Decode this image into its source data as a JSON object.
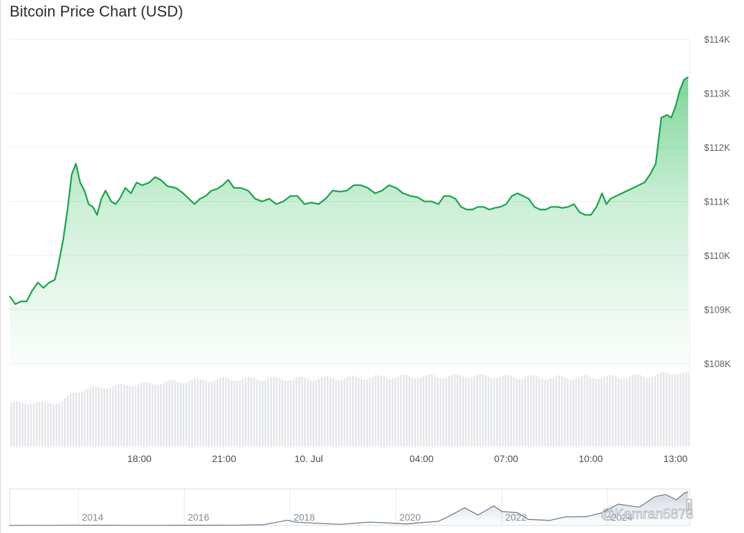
{
  "page": {
    "title": "Bitcoin Price Chart (USD)",
    "watermark": "@Kamran5873",
    "colors": {
      "line": "#1aa64b",
      "fill": "#2ebd5a",
      "volume": "#e4e6ea",
      "navigator_line": "#6c7f91",
      "grid": "#eceef1"
    }
  },
  "chart_data": [
    {
      "type": "area",
      "title": "Bitcoin Price Chart (USD)",
      "xlabel": "",
      "ylabel": "",
      "ylim": [
        108000,
        114000
      ],
      "y_ticks": [
        114000,
        113000,
        112000,
        111000,
        110000,
        109000,
        108000
      ],
      "y_tick_labels": [
        "$114K",
        "$113K",
        "$112K",
        "$111K",
        "$110K",
        "$109K",
        "$108K"
      ],
      "x_tick_labels": [
        "18:00",
        "21:00",
        "10. Jul",
        "04:00",
        "07:00",
        "10:00",
        "13:00"
      ],
      "x_tick_hours": [
        18,
        21,
        24,
        28,
        31,
        34,
        37
      ],
      "x_range_hours": [
        13.4,
        37.5
      ],
      "grid": true,
      "series": [
        {
          "points": [
            [
              13.4,
              109250
            ],
            [
              13.6,
              109100
            ],
            [
              13.8,
              109150
            ],
            [
              14.0,
              109150
            ],
            [
              14.2,
              109350
            ],
            [
              14.4,
              109500
            ],
            [
              14.6,
              109400
            ],
            [
              14.8,
              109500
            ],
            [
              15.0,
              109550
            ],
            [
              15.1,
              109750
            ],
            [
              15.3,
              110300
            ],
            [
              15.45,
              110850
            ],
            [
              15.6,
              111500
            ],
            [
              15.75,
              111700
            ],
            [
              15.9,
              111350
            ],
            [
              16.05,
              111200
            ],
            [
              16.2,
              110950
            ],
            [
              16.35,
              110900
            ],
            [
              16.5,
              110750
            ],
            [
              16.65,
              111050
            ],
            [
              16.8,
              111200
            ],
            [
              17.0,
              111000
            ],
            [
              17.15,
              110950
            ],
            [
              17.3,
              111050
            ],
            [
              17.5,
              111250
            ],
            [
              17.7,
              111150
            ],
            [
              17.9,
              111350
            ],
            [
              18.1,
              111300
            ],
            [
              18.35,
              111350
            ],
            [
              18.55,
              111450
            ],
            [
              18.75,
              111400
            ],
            [
              19.0,
              111280
            ],
            [
              19.3,
              111250
            ],
            [
              19.55,
              111150
            ],
            [
              19.75,
              111050
            ],
            [
              19.95,
              110950
            ],
            [
              20.15,
              111050
            ],
            [
              20.35,
              111100
            ],
            [
              20.55,
              111200
            ],
            [
              20.75,
              111230
            ],
            [
              20.95,
              111300
            ],
            [
              21.15,
              111400
            ],
            [
              21.35,
              111250
            ],
            [
              21.6,
              111250
            ],
            [
              21.85,
              111200
            ],
            [
              22.1,
              111050
            ],
            [
              22.35,
              111000
            ],
            [
              22.6,
              111050
            ],
            [
              22.85,
              110950
            ],
            [
              23.1,
              111000
            ],
            [
              23.35,
              111100
            ],
            [
              23.6,
              111100
            ],
            [
              23.85,
              110950
            ],
            [
              24.1,
              110980
            ],
            [
              24.35,
              110950
            ],
            [
              24.6,
              111050
            ],
            [
              24.85,
              111200
            ],
            [
              25.1,
              111180
            ],
            [
              25.35,
              111200
            ],
            [
              25.6,
              111300
            ],
            [
              25.85,
              111300
            ],
            [
              26.1,
              111250
            ],
            [
              26.35,
              111150
            ],
            [
              26.6,
              111200
            ],
            [
              26.85,
              111300
            ],
            [
              27.1,
              111250
            ],
            [
              27.35,
              111150
            ],
            [
              27.6,
              111100
            ],
            [
              27.85,
              111080
            ],
            [
              28.1,
              111000
            ],
            [
              28.35,
              111000
            ],
            [
              28.6,
              110950
            ],
            [
              28.8,
              111100
            ],
            [
              29.0,
              111100
            ],
            [
              29.2,
              111050
            ],
            [
              29.4,
              110900
            ],
            [
              29.6,
              110850
            ],
            [
              29.8,
              110850
            ],
            [
              30.0,
              110900
            ],
            [
              30.2,
              110900
            ],
            [
              30.4,
              110850
            ],
            [
              30.6,
              110880
            ],
            [
              30.8,
              110900
            ],
            [
              31.0,
              110950
            ],
            [
              31.2,
              111100
            ],
            [
              31.4,
              111150
            ],
            [
              31.6,
              111100
            ],
            [
              31.8,
              111050
            ],
            [
              32.0,
              110900
            ],
            [
              32.2,
              110850
            ],
            [
              32.4,
              110850
            ],
            [
              32.6,
              110900
            ],
            [
              32.8,
              110900
            ],
            [
              33.0,
              110880
            ],
            [
              33.2,
              110900
            ],
            [
              33.4,
              110950
            ],
            [
              33.6,
              110800
            ],
            [
              33.8,
              110750
            ],
            [
              34.0,
              110750
            ],
            [
              34.2,
              110900
            ],
            [
              34.4,
              111150
            ],
            [
              34.55,
              110950
            ],
            [
              34.7,
              111050
            ],
            [
              34.9,
              111100
            ],
            [
              35.1,
              111150
            ],
            [
              35.3,
              111200
            ],
            [
              35.5,
              111250
            ],
            [
              35.7,
              111300
            ],
            [
              35.9,
              111350
            ],
            [
              36.1,
              111500
            ],
            [
              36.3,
              111700
            ],
            [
              36.5,
              112550
            ],
            [
              36.7,
              112600
            ],
            [
              36.85,
              112550
            ],
            [
              37.0,
              112750
            ],
            [
              37.15,
              113050
            ],
            [
              37.3,
              113250
            ],
            [
              37.45,
              113300
            ]
          ]
        }
      ]
    },
    {
      "type": "bar",
      "title": "",
      "xlabel": "",
      "ylabel": "",
      "grid": false,
      "series": [
        {
          "points": [
            [
              13.4,
              110
            ],
            [
              14.0,
              110
            ],
            [
              14.8,
              110
            ],
            [
              15.2,
              112
            ],
            [
              15.6,
              135
            ],
            [
              16.0,
              145
            ],
            [
              16.5,
              148
            ],
            [
              17.0,
              152
            ],
            [
              17.5,
              155
            ],
            [
              18.0,
              158
            ],
            [
              18.5,
              160
            ],
            [
              19.0,
              163
            ],
            [
              19.5,
              165
            ],
            [
              20.0,
              167
            ],
            [
              20.5,
              168
            ],
            [
              21.0,
              170
            ],
            [
              21.5,
              170
            ],
            [
              22.0,
              171
            ],
            [
              22.5,
              171
            ],
            [
              23.0,
              171
            ],
            [
              24.0,
              172
            ],
            [
              25.0,
              173
            ],
            [
              26.0,
              175
            ],
            [
              27.0,
              176
            ],
            [
              28.0,
              177
            ],
            [
              29.0,
              178
            ],
            [
              30.0,
              178
            ],
            [
              31.0,
              176
            ],
            [
              32.0,
              175
            ],
            [
              33.0,
              174
            ],
            [
              34.0,
              175
            ],
            [
              35.0,
              176
            ],
            [
              36.0,
              178
            ],
            [
              36.5,
              182
            ],
            [
              37.0,
              188
            ],
            [
              37.45,
              182
            ]
          ]
        }
      ]
    },
    {
      "type": "line",
      "title": "",
      "xlabel": "",
      "ylabel": "",
      "grid": true,
      "x_tick_labels": [
        "2014",
        "2016",
        "2018",
        "2020",
        "2022",
        "2024"
      ],
      "x_tick_years": [
        2014,
        2016,
        2018,
        2020,
        2022,
        2024
      ],
      "x_range_years": [
        2012.7,
        2025.55
      ],
      "ylim": [
        0,
        120000
      ],
      "series": [
        {
          "points": [
            [
              2012.7,
              100
            ],
            [
              2013.5,
              200
            ],
            [
              2013.9,
              900
            ],
            [
              2014.5,
              600
            ],
            [
              2015.0,
              300
            ],
            [
              2015.5,
              250
            ],
            [
              2016.0,
              430
            ],
            [
              2016.5,
              650
            ],
            [
              2017.0,
              1000
            ],
            [
              2017.5,
              2500
            ],
            [
              2017.95,
              17000
            ],
            [
              2018.1,
              11000
            ],
            [
              2018.5,
              7000
            ],
            [
              2018.95,
              3700
            ],
            [
              2019.5,
              11000
            ],
            [
              2019.95,
              7200
            ],
            [
              2020.2,
              5000
            ],
            [
              2020.5,
              9500
            ],
            [
              2020.8,
              13500
            ],
            [
              2020.99,
              29000
            ],
            [
              2021.3,
              58000
            ],
            [
              2021.55,
              34000
            ],
            [
              2021.85,
              64000
            ],
            [
              2022.0,
              46000
            ],
            [
              2022.3,
              42000
            ],
            [
              2022.5,
              20000
            ],
            [
              2022.9,
              16500
            ],
            [
              2023.2,
              28000
            ],
            [
              2023.6,
              29000
            ],
            [
              2023.9,
              42000
            ],
            [
              2024.2,
              70000
            ],
            [
              2024.6,
              60000
            ],
            [
              2024.9,
              95000
            ],
            [
              2025.1,
              102000
            ],
            [
              2025.3,
              84000
            ],
            [
              2025.45,
              106000
            ],
            [
              2025.52,
              111000
            ]
          ]
        }
      ]
    }
  ]
}
